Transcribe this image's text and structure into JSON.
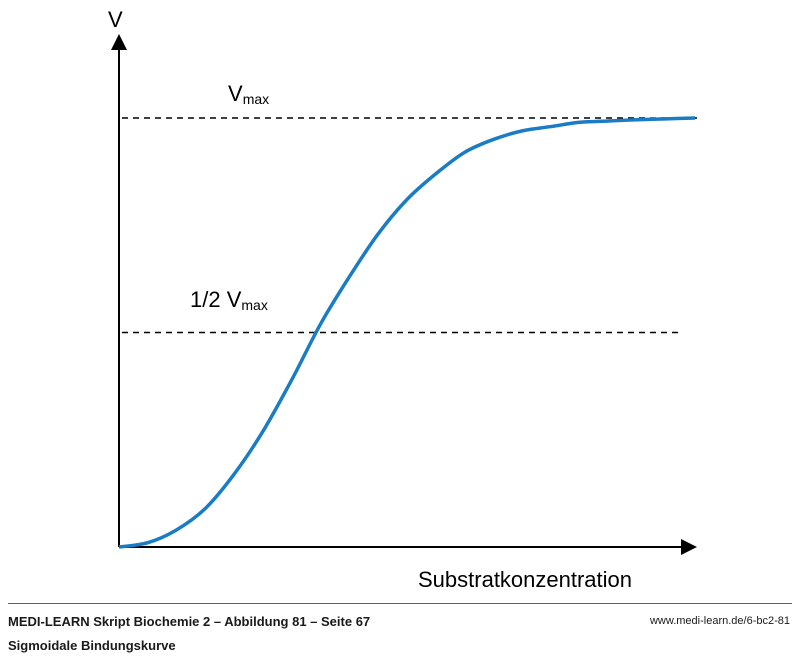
{
  "chart_data": {
    "type": "line",
    "ylabel": "V",
    "xlabel": "Substratkonzentration",
    "xlim": [
      0,
      1
    ],
    "ylim": [
      0,
      1.0
    ],
    "grid": false,
    "reference_lines": [
      {
        "label_main": "V",
        "label_sub": "max",
        "y": 1.0
      },
      {
        "label_main": "1/2 V",
        "label_sub": "max",
        "y": 0.5
      }
    ],
    "series": [
      {
        "color": "#1a7cc4",
        "x": [
          0,
          0.05,
          0.1,
          0.15,
          0.2,
          0.25,
          0.3,
          0.35,
          0.4,
          0.45,
          0.5,
          0.55,
          0.6,
          0.65,
          0.7,
          0.75,
          0.8,
          0.85,
          0.9,
          0.95,
          1.0
        ],
        "y": [
          0,
          0.01,
          0.04,
          0.09,
          0.17,
          0.27,
          0.39,
          0.52,
          0.63,
          0.73,
          0.81,
          0.87,
          0.92,
          0.95,
          0.97,
          0.98,
          0.99,
          0.993,
          0.996,
          0.998,
          1.0
        ]
      }
    ]
  },
  "footer": {
    "title": "MEDI-LEARN Skript Biochemie 2 – Abbildung 81 – Seite 67",
    "subtitle": "Sigmoidale Bindungskurve",
    "url": "www.medi-learn.de/6-bc2-81"
  },
  "colors": {
    "axis": "#000000",
    "curve": "#1a7cc4",
    "rule": "#1f6fb2"
  }
}
